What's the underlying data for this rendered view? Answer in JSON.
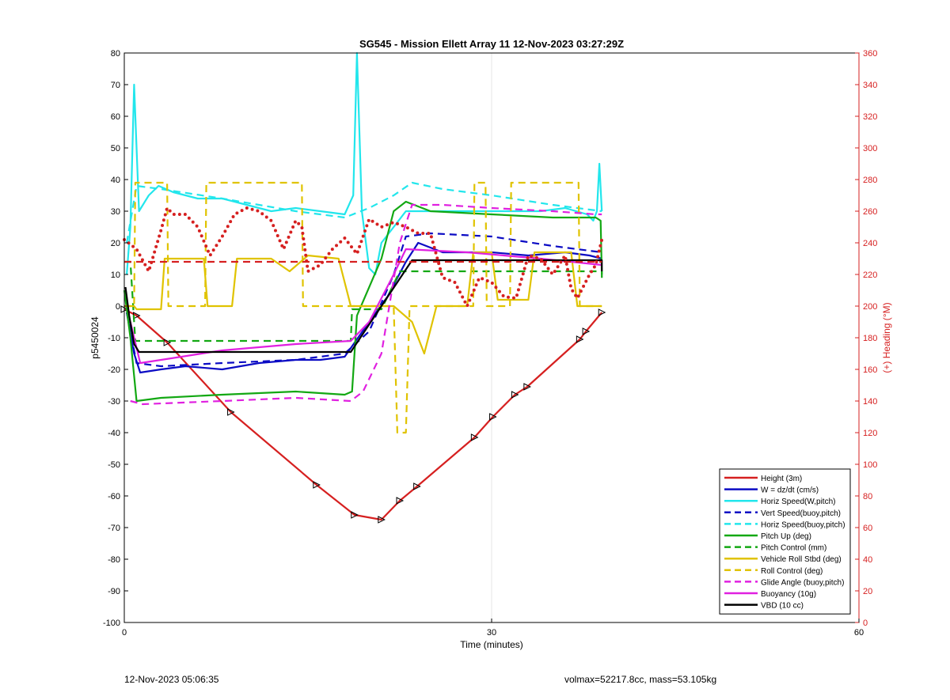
{
  "chart_data": {
    "type": "line",
    "title": "SG545 - Mission Ellett Array 11 12-Nov-2023 03:27:29Z",
    "xlabel": "Time (minutes)",
    "ylabel": "p5450024",
    "y2label": "(+) Heading (°M)",
    "xlim": [
      0,
      60
    ],
    "ylim": [
      -100,
      80
    ],
    "y2lim": [
      0,
      360
    ],
    "xticks": [
      "0",
      "30",
      "60"
    ],
    "yticks": [
      "80",
      "70",
      "60",
      "50",
      "40",
      "30",
      "20",
      "10",
      "0",
      "-10",
      "-20",
      "-30",
      "-40",
      "-50",
      "-60",
      "-70",
      "-80",
      "-90",
      "-100"
    ],
    "y2ticks": [
      "360",
      "340",
      "320",
      "300",
      "280",
      "260",
      "240",
      "220",
      "200",
      "180",
      "160",
      "140",
      "120",
      "100",
      "80",
      "60",
      "40",
      "20",
      "0"
    ],
    "grid": "x",
    "legend_position": "bottom-right",
    "colors": {
      "red": "#d62020",
      "blue": "#0b0bc4",
      "cyan": "#22e6ec",
      "green": "#13a813",
      "yellow": "#e0c300",
      "magenta": "#e020e0",
      "black": "#000000"
    },
    "series": [
      {
        "name": "Height (3m)",
        "color": "red",
        "style": "solid",
        "markers": "triangle",
        "x": [
          0,
          1,
          3.5,
          8.7,
          15.7,
          18.8,
          21,
          22.5,
          23.9,
          28.6,
          30.1,
          31.9,
          32.9,
          37.2,
          37.7,
          39
        ],
        "y": [
          -1,
          -3,
          -11.5,
          -33.5,
          -56.5,
          -66,
          -67.5,
          -61.5,
          -57,
          -41.5,
          -35,
          -28,
          -25.5,
          -10.5,
          -8,
          -2
        ]
      },
      {
        "name": "W = dz/dt (cm/s)",
        "color": "blue",
        "style": "solid",
        "x": [
          0.2,
          0.8,
          1.3,
          3,
          5,
          8,
          11,
          14,
          16,
          18,
          20,
          21.5,
          23,
          24,
          26,
          28,
          30,
          33,
          36,
          38,
          39
        ],
        "y": [
          -2,
          -15,
          -21,
          -20,
          -19,
          -20,
          -18,
          -17,
          -17,
          -16,
          -5,
          3,
          14,
          20,
          17,
          17,
          17,
          16,
          17,
          16,
          15
        ]
      },
      {
        "name": "Horiz Speed(W,pitch)",
        "color": "cyan",
        "style": "solid",
        "x": [
          0.2,
          0.5,
          0.8,
          1.2,
          2,
          2.8,
          4,
          6,
          8,
          10,
          12,
          14,
          16,
          18,
          18.7,
          19,
          19.4,
          20,
          20.5,
          21,
          22,
          23,
          25,
          30,
          34,
          36,
          37.8,
          38.3,
          38.6,
          38.8,
          39
        ],
        "y": [
          10,
          25,
          70,
          30,
          35,
          38,
          36,
          34,
          34,
          32,
          30,
          31,
          30,
          29,
          35,
          80,
          30,
          12,
          10,
          20,
          25,
          30,
          30,
          30,
          30,
          31,
          29,
          27,
          30,
          45,
          30
        ]
      },
      {
        "name": "Vert Speed(buoy,pitch)",
        "color": "blue",
        "style": "dashed",
        "x": [
          0.2,
          1,
          3,
          8,
          14,
          18,
          20,
          22,
          23,
          25,
          30,
          35,
          39
        ],
        "y": [
          -2,
          -18,
          -19,
          -18,
          -17,
          -15,
          -8,
          10,
          22,
          23,
          22,
          19,
          17
        ]
      },
      {
        "name": "Horiz Speed(buoy,pitch)",
        "color": "cyan",
        "style": "dashed",
        "x": [
          0.2,
          1,
          3,
          8,
          14,
          18,
          20,
          22,
          23.5,
          26,
          30,
          35,
          39
        ],
        "y": [
          20,
          38,
          37,
          34,
          30,
          28,
          31,
          35,
          39,
          37,
          35,
          32,
          30
        ]
      },
      {
        "name": "Pitch Up (deg)",
        "color": "green",
        "style": "solid",
        "x": [
          0,
          0.5,
          1,
          3,
          8,
          14,
          18,
          18.6,
          19,
          21,
          22,
          23,
          25,
          30,
          35,
          38.5,
          38.9,
          39
        ],
        "y": [
          5,
          -10,
          -30,
          -29,
          -28,
          -27,
          -28,
          -27,
          -3,
          15,
          30,
          33,
          30,
          29,
          28,
          28,
          27,
          10
        ]
      },
      {
        "name": "Pitch Control (mm)",
        "color": "green",
        "style": "dashed",
        "x": [
          0,
          0.5,
          0.9,
          18.5,
          18.6,
          21,
          22.5,
          39,
          39
        ],
        "y": [
          14,
          14,
          -11,
          -11,
          -1,
          -1,
          11,
          11,
          8
        ]
      },
      {
        "name": "Vehicle Roll Stbd (deg)",
        "color": "yellow",
        "style": "solid",
        "x": [
          0,
          0.8,
          1,
          3,
          3.3,
          6.5,
          6.8,
          8.8,
          9.2,
          12,
          13.5,
          15,
          17.5,
          18.5,
          19.5,
          21,
          22,
          23.5,
          24.5,
          25.5,
          28,
          28.5,
          30,
          30.5,
          33,
          33.5,
          36.5,
          37,
          39
        ],
        "y": [
          0,
          0,
          -1,
          -1,
          15,
          15,
          0,
          0,
          15,
          15,
          11,
          16,
          15,
          0,
          0,
          0,
          0,
          -5,
          -15,
          0,
          0,
          17,
          17,
          2,
          2,
          17,
          17,
          0,
          0
        ]
      },
      {
        "name": "Roll Control (deg)",
        "color": "yellow",
        "style": "dashed",
        "x": [
          0,
          0.8,
          0.9,
          1.5,
          3.5,
          3.6,
          6.6,
          6.7,
          8.8,
          8.9,
          14.5,
          14.6,
          21,
          22,
          22.3,
          23,
          23.3,
          25,
          28.5,
          28.6,
          29.5,
          29.6,
          31.5,
          31.6,
          36.5,
          36.6,
          37.1,
          37.2,
          39
        ],
        "y": [
          0,
          0,
          39,
          39,
          39,
          0,
          0,
          39,
          39,
          39,
          39,
          0,
          0,
          0,
          -40,
          -40,
          0,
          0,
          0,
          39,
          39,
          0,
          0,
          39,
          39,
          39,
          39,
          0,
          0
        ]
      },
      {
        "name": "Glide Angle (buoy,pitch)",
        "color": "magenta",
        "style": "dashed",
        "x": [
          0.5,
          1.5,
          8,
          14,
          18.5,
          19.5,
          21,
          22.5,
          23.5,
          26,
          30,
          35,
          38.5,
          39
        ],
        "y": [
          -30,
          -31,
          -30,
          -29,
          -30,
          -27,
          -15,
          20,
          32,
          32,
          31,
          30,
          29,
          29
        ]
      },
      {
        "name": "Buoyancy (10g)",
        "color": "magenta",
        "style": "solid",
        "x": [
          0.5,
          1.3,
          3,
          8,
          14,
          18.5,
          20,
          22,
          23,
          28,
          34,
          39
        ],
        "y": [
          -5,
          -18,
          -17,
          -14,
          -12,
          -11,
          -5,
          10,
          18,
          17,
          15,
          13
        ]
      },
      {
        "name": "VBD (10 cc)",
        "color": "black",
        "style": "solid",
        "x": [
          0.1,
          0.4,
          0.8,
          1.2,
          18.5,
          23.5,
          39,
          39
        ],
        "y": [
          6,
          -3,
          -12,
          -14.5,
          -14.5,
          14.5,
          14.5,
          11
        ]
      },
      {
        "name": "",
        "color": "red",
        "style": "dashed",
        "axis": "y2",
        "x": [
          0,
          39
        ],
        "y": [
          228,
          228
        ]
      },
      {
        "name": "",
        "color": "red",
        "style": "dotted",
        "axis": "y2",
        "x": [
          0,
          1,
          2,
          3,
          3.5,
          4,
          5,
          6,
          7,
          8,
          9,
          10,
          11,
          12,
          13,
          14,
          14.5,
          15,
          16,
          17,
          18,
          19,
          20,
          21,
          22,
          23,
          24,
          25,
          26,
          27,
          28,
          29,
          30,
          31,
          32,
          33,
          34,
          35,
          36,
          36.5,
          37,
          38,
          38.5,
          39
        ],
        "y": [
          242,
          236,
          222,
          248,
          262,
          258,
          258,
          250,
          232,
          244,
          258,
          262,
          260,
          254,
          236,
          254,
          250,
          222,
          226,
          236,
          243,
          233,
          255,
          250,
          253,
          250,
          246,
          246,
          218,
          215,
          200,
          218,
          215,
          206,
          205,
          232,
          230,
          220,
          232,
          211,
          205,
          220,
          226,
          242
        ]
      }
    ]
  },
  "footer": {
    "timestamp": "12-Nov-2023 05:06:35",
    "params": "volmax=52217.8cc, mass=53.105kg"
  }
}
